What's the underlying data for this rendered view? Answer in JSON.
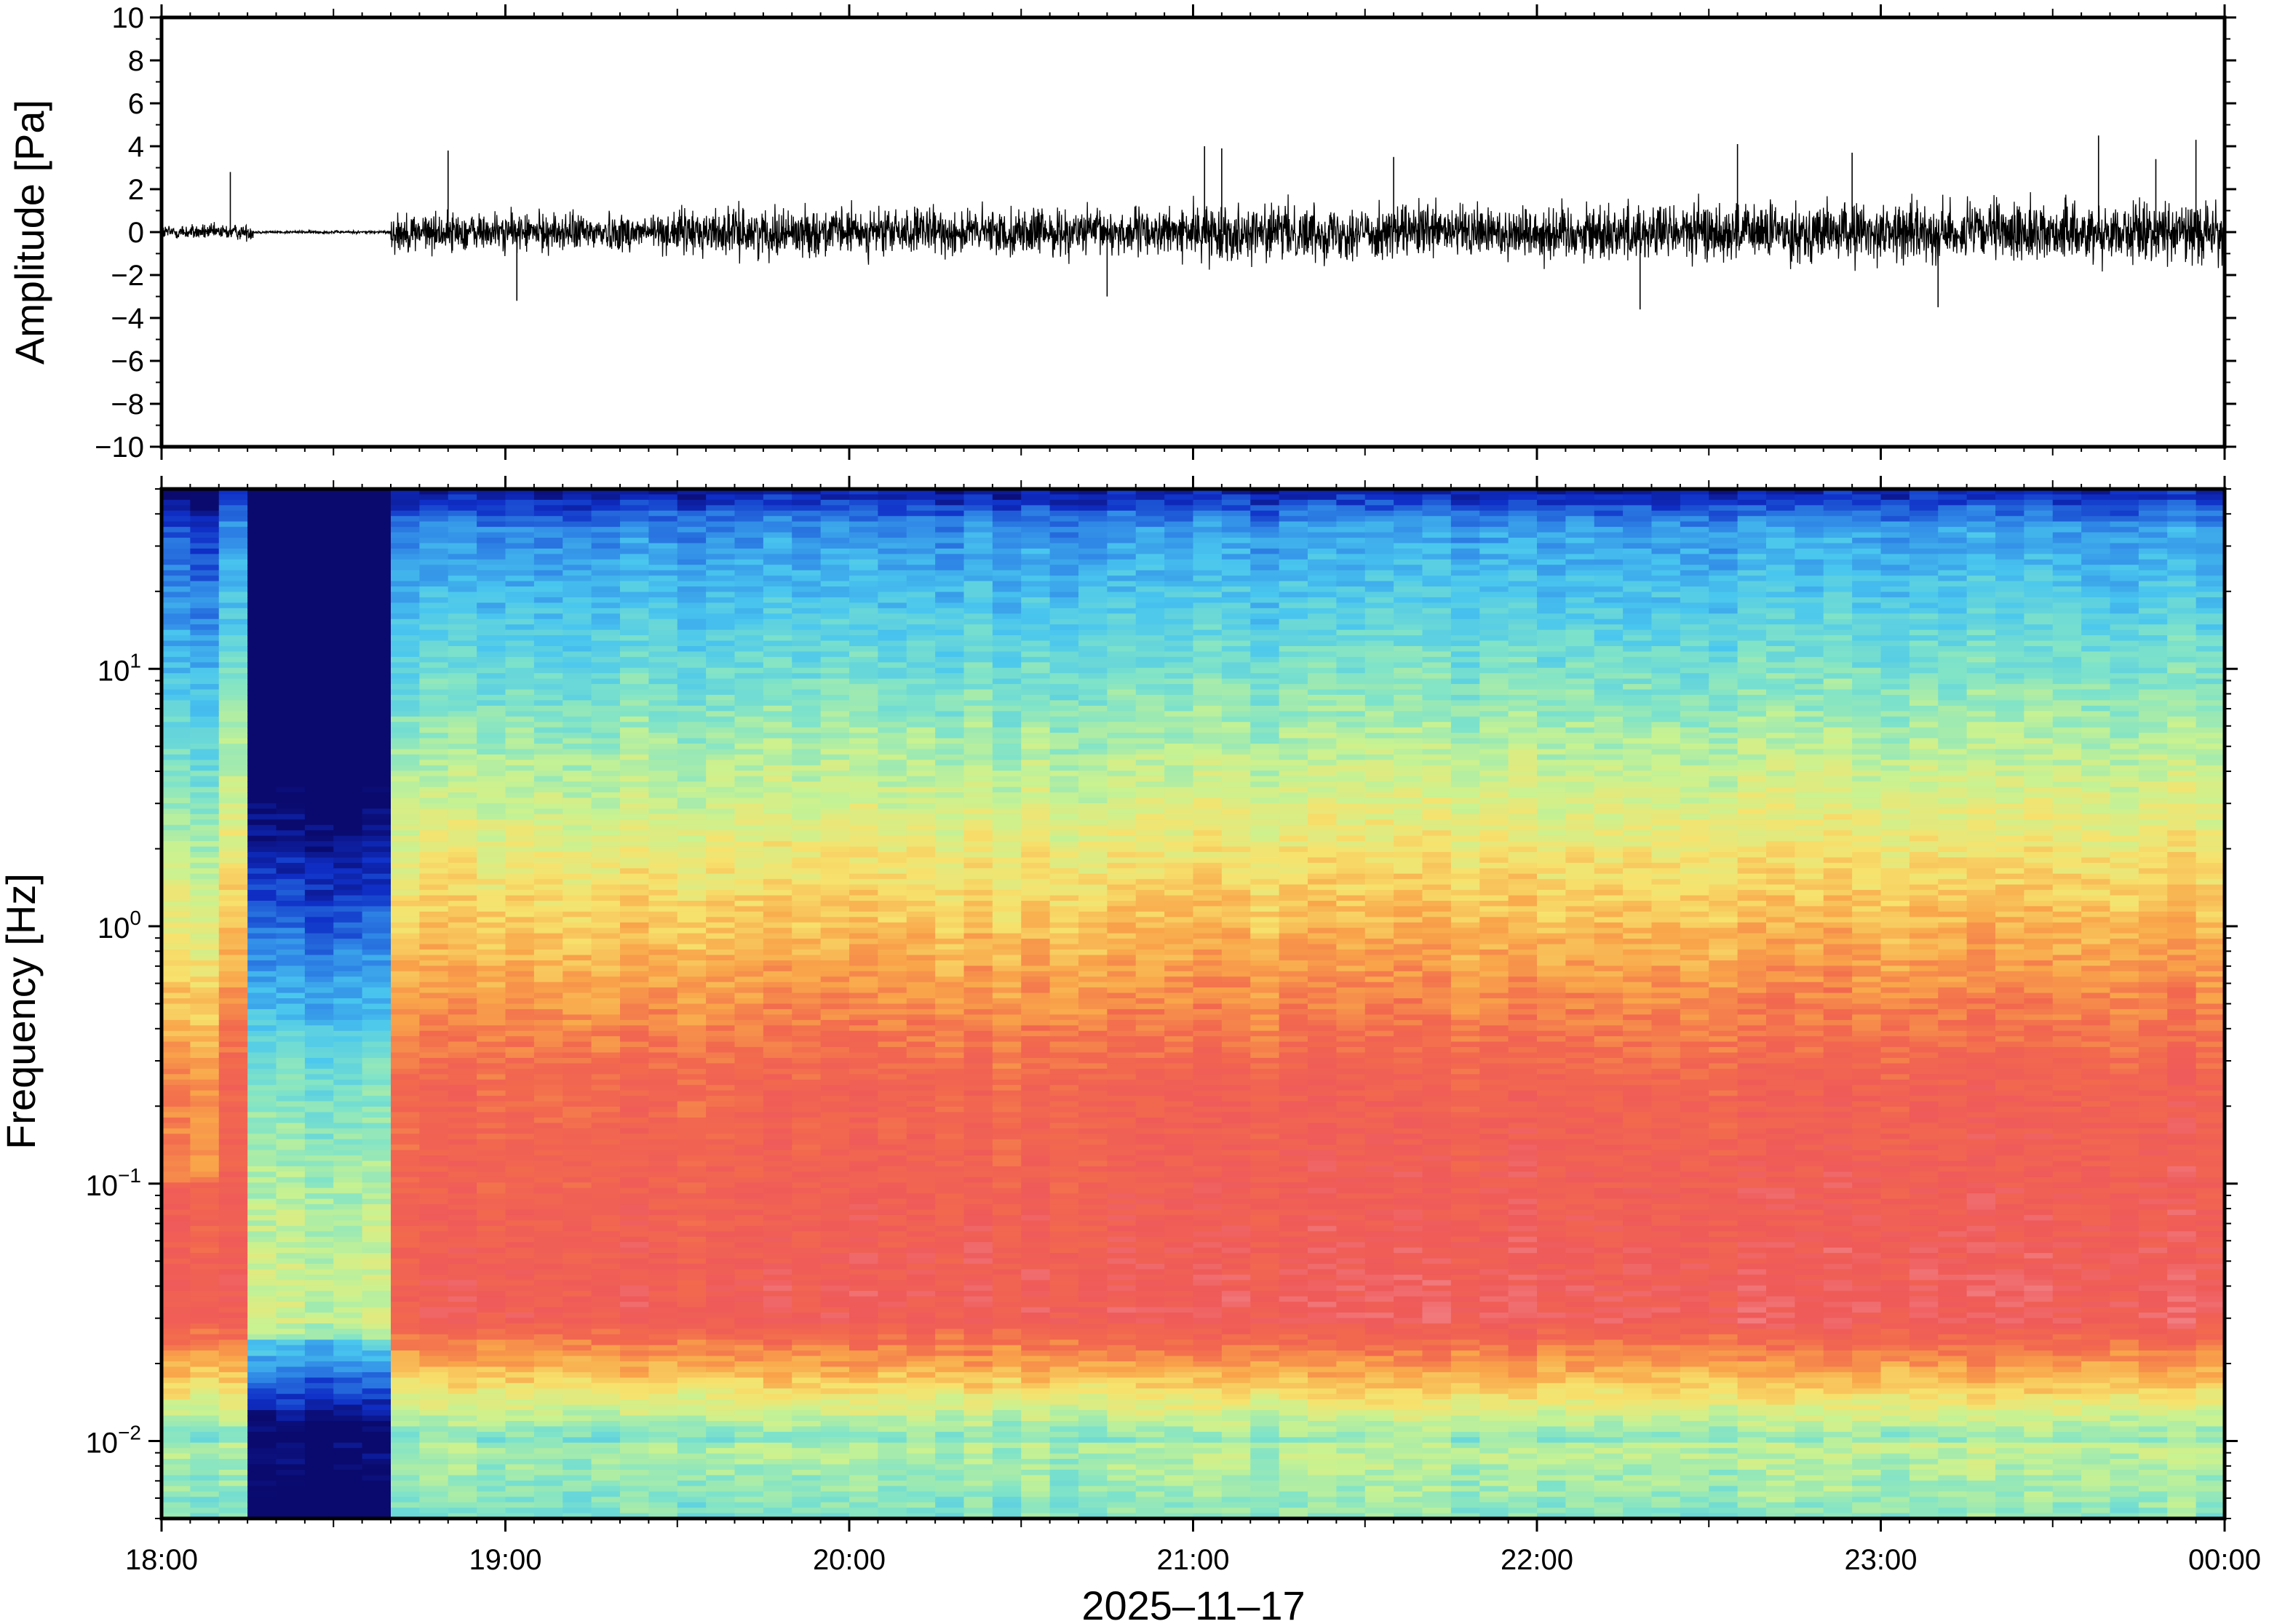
{
  "chart_data": [
    {
      "type": "line",
      "panel": "waveform",
      "title": "",
      "ylabel": "Amplitude [Pa]",
      "ylim": [
        -10,
        10
      ],
      "y_ticks": [
        -10,
        -8,
        -6,
        -4,
        -2,
        0,
        2,
        4,
        6,
        8,
        10
      ],
      "y_tick_labels": [
        "−10",
        "−8",
        "−6",
        "−4",
        "−2",
        "0",
        "2",
        "4",
        "6",
        "8",
        "10"
      ],
      "xlim": [
        "18:00",
        "00:00"
      ],
      "grid": false,
      "segments": [
        {
          "start": "18:00",
          "end": "18:16",
          "amplitude": 0.4
        },
        {
          "start": "18:16",
          "end": "18:40",
          "amplitude": 0.08
        },
        {
          "start": "18:40",
          "end": "19:30",
          "amplitude": 1.0
        },
        {
          "start": "19:30",
          "end": "21:00",
          "amplitude": 1.2
        },
        {
          "start": "21:00",
          "end": "22:00",
          "amplitude": 1.4
        },
        {
          "start": "22:00",
          "end": "00:00",
          "amplitude": 1.5
        }
      ],
      "spikes": [
        {
          "time": "18:12",
          "value": 2.8
        },
        {
          "time": "18:50",
          "value": 3.8
        },
        {
          "time": "19:02",
          "value": -3.2
        },
        {
          "time": "20:45",
          "value": -3.0
        },
        {
          "time": "21:02",
          "value": 4.0
        },
        {
          "time": "21:05",
          "value": 3.9
        },
        {
          "time": "21:35",
          "value": 3.5
        },
        {
          "time": "22:18",
          "value": -3.6
        },
        {
          "time": "22:35",
          "value": 4.1
        },
        {
          "time": "22:55",
          "value": 3.7
        },
        {
          "time": "23:10",
          "value": -3.5
        },
        {
          "time": "23:38",
          "value": 4.5
        },
        {
          "time": "23:48",
          "value": 3.4
        },
        {
          "time": "23:55",
          "value": 4.3
        }
      ]
    },
    {
      "type": "heatmap",
      "panel": "spectrogram",
      "title": "",
      "ylabel": "Frequency [Hz]",
      "xlabel": "2025–11–17",
      "y_scale": "log",
      "ylim": [
        0.005,
        50
      ],
      "y_ticks": [
        {
          "value": 0.01,
          "base": "10",
          "exp": "−2"
        },
        {
          "value": 0.1,
          "base": "10",
          "exp": "−1"
        },
        {
          "value": 1,
          "base": "10",
          "exp": "0"
        },
        {
          "value": 10,
          "base": "10",
          "exp": "1"
        }
      ],
      "x_ticks": [
        "18:00",
        "19:00",
        "20:00",
        "21:00",
        "22:00",
        "23:00",
        "00:00"
      ],
      "colormap": [
        "#0a0a6e",
        "#0f2fc7",
        "#2f86e6",
        "#49c6ef",
        "#7fe3c9",
        "#c9f291",
        "#f7e26d",
        "#f9a64a",
        "#f2694e",
        "#ef5a5a",
        "#f49aa0"
      ],
      "time_columns": 72,
      "features": [
        {
          "description_ref": "quiet",
          "start": "18:16",
          "end": "18:40"
        }
      ],
      "grid": false
    }
  ]
}
